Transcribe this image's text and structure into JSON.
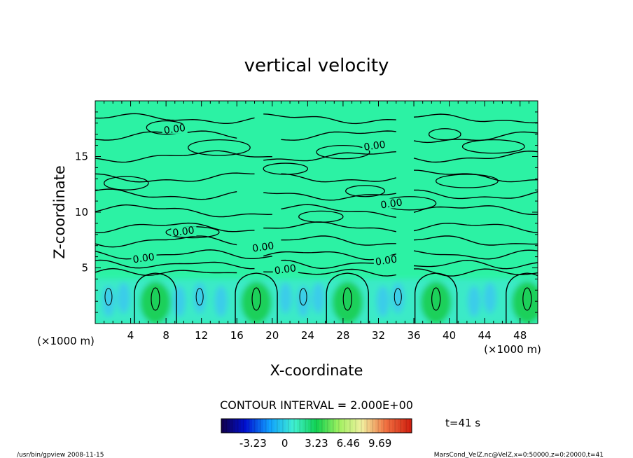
{
  "chart_data": {
    "type": "heatmap",
    "title": "vertical velocity",
    "xlabel": "X-coordinate",
    "ylabel": "Z-coordinate",
    "x_unit": "(×1000 m)",
    "y_unit": "(×1000 m)",
    "xlim": [
      0,
      50
    ],
    "ylim": [
      0,
      20
    ],
    "x_ticks": [
      "4",
      "8",
      "12",
      "16",
      "20",
      "24",
      "28",
      "32",
      "36",
      "40",
      "44",
      "48"
    ],
    "y_ticks": [
      "5",
      "10",
      "15"
    ],
    "contour_labels": [
      "0.00",
      "0.00",
      "0.00",
      "0.00",
      "0.00",
      "0.00",
      "0.00",
      "0.00"
    ],
    "contour_interval_text": "CONTOUR INTERVAL = 2.000E+00",
    "time_text": "t=41 s",
    "colorbar_ticks": [
      "-3.23",
      "0",
      "3.23",
      "6.46",
      "9.69"
    ],
    "colorbar_range": [
      -6.46,
      12.92
    ],
    "updraft_centers_x": [
      6.8,
      18.2,
      28.5,
      38.5,
      48.8
    ],
    "updraft_peak_z": 2.2,
    "grid": false
  },
  "footer": {
    "left": "/usr/bin/gpview   2008-11-15",
    "right": "MarsCond_VelZ.nc@VelZ,x=0:50000,z=0:20000,t=41"
  },
  "colors": {
    "background_field": "#2cf2a4",
    "updraft": "#1ed05a",
    "downdraft": "#3cc8f0",
    "contour": "#000000"
  }
}
